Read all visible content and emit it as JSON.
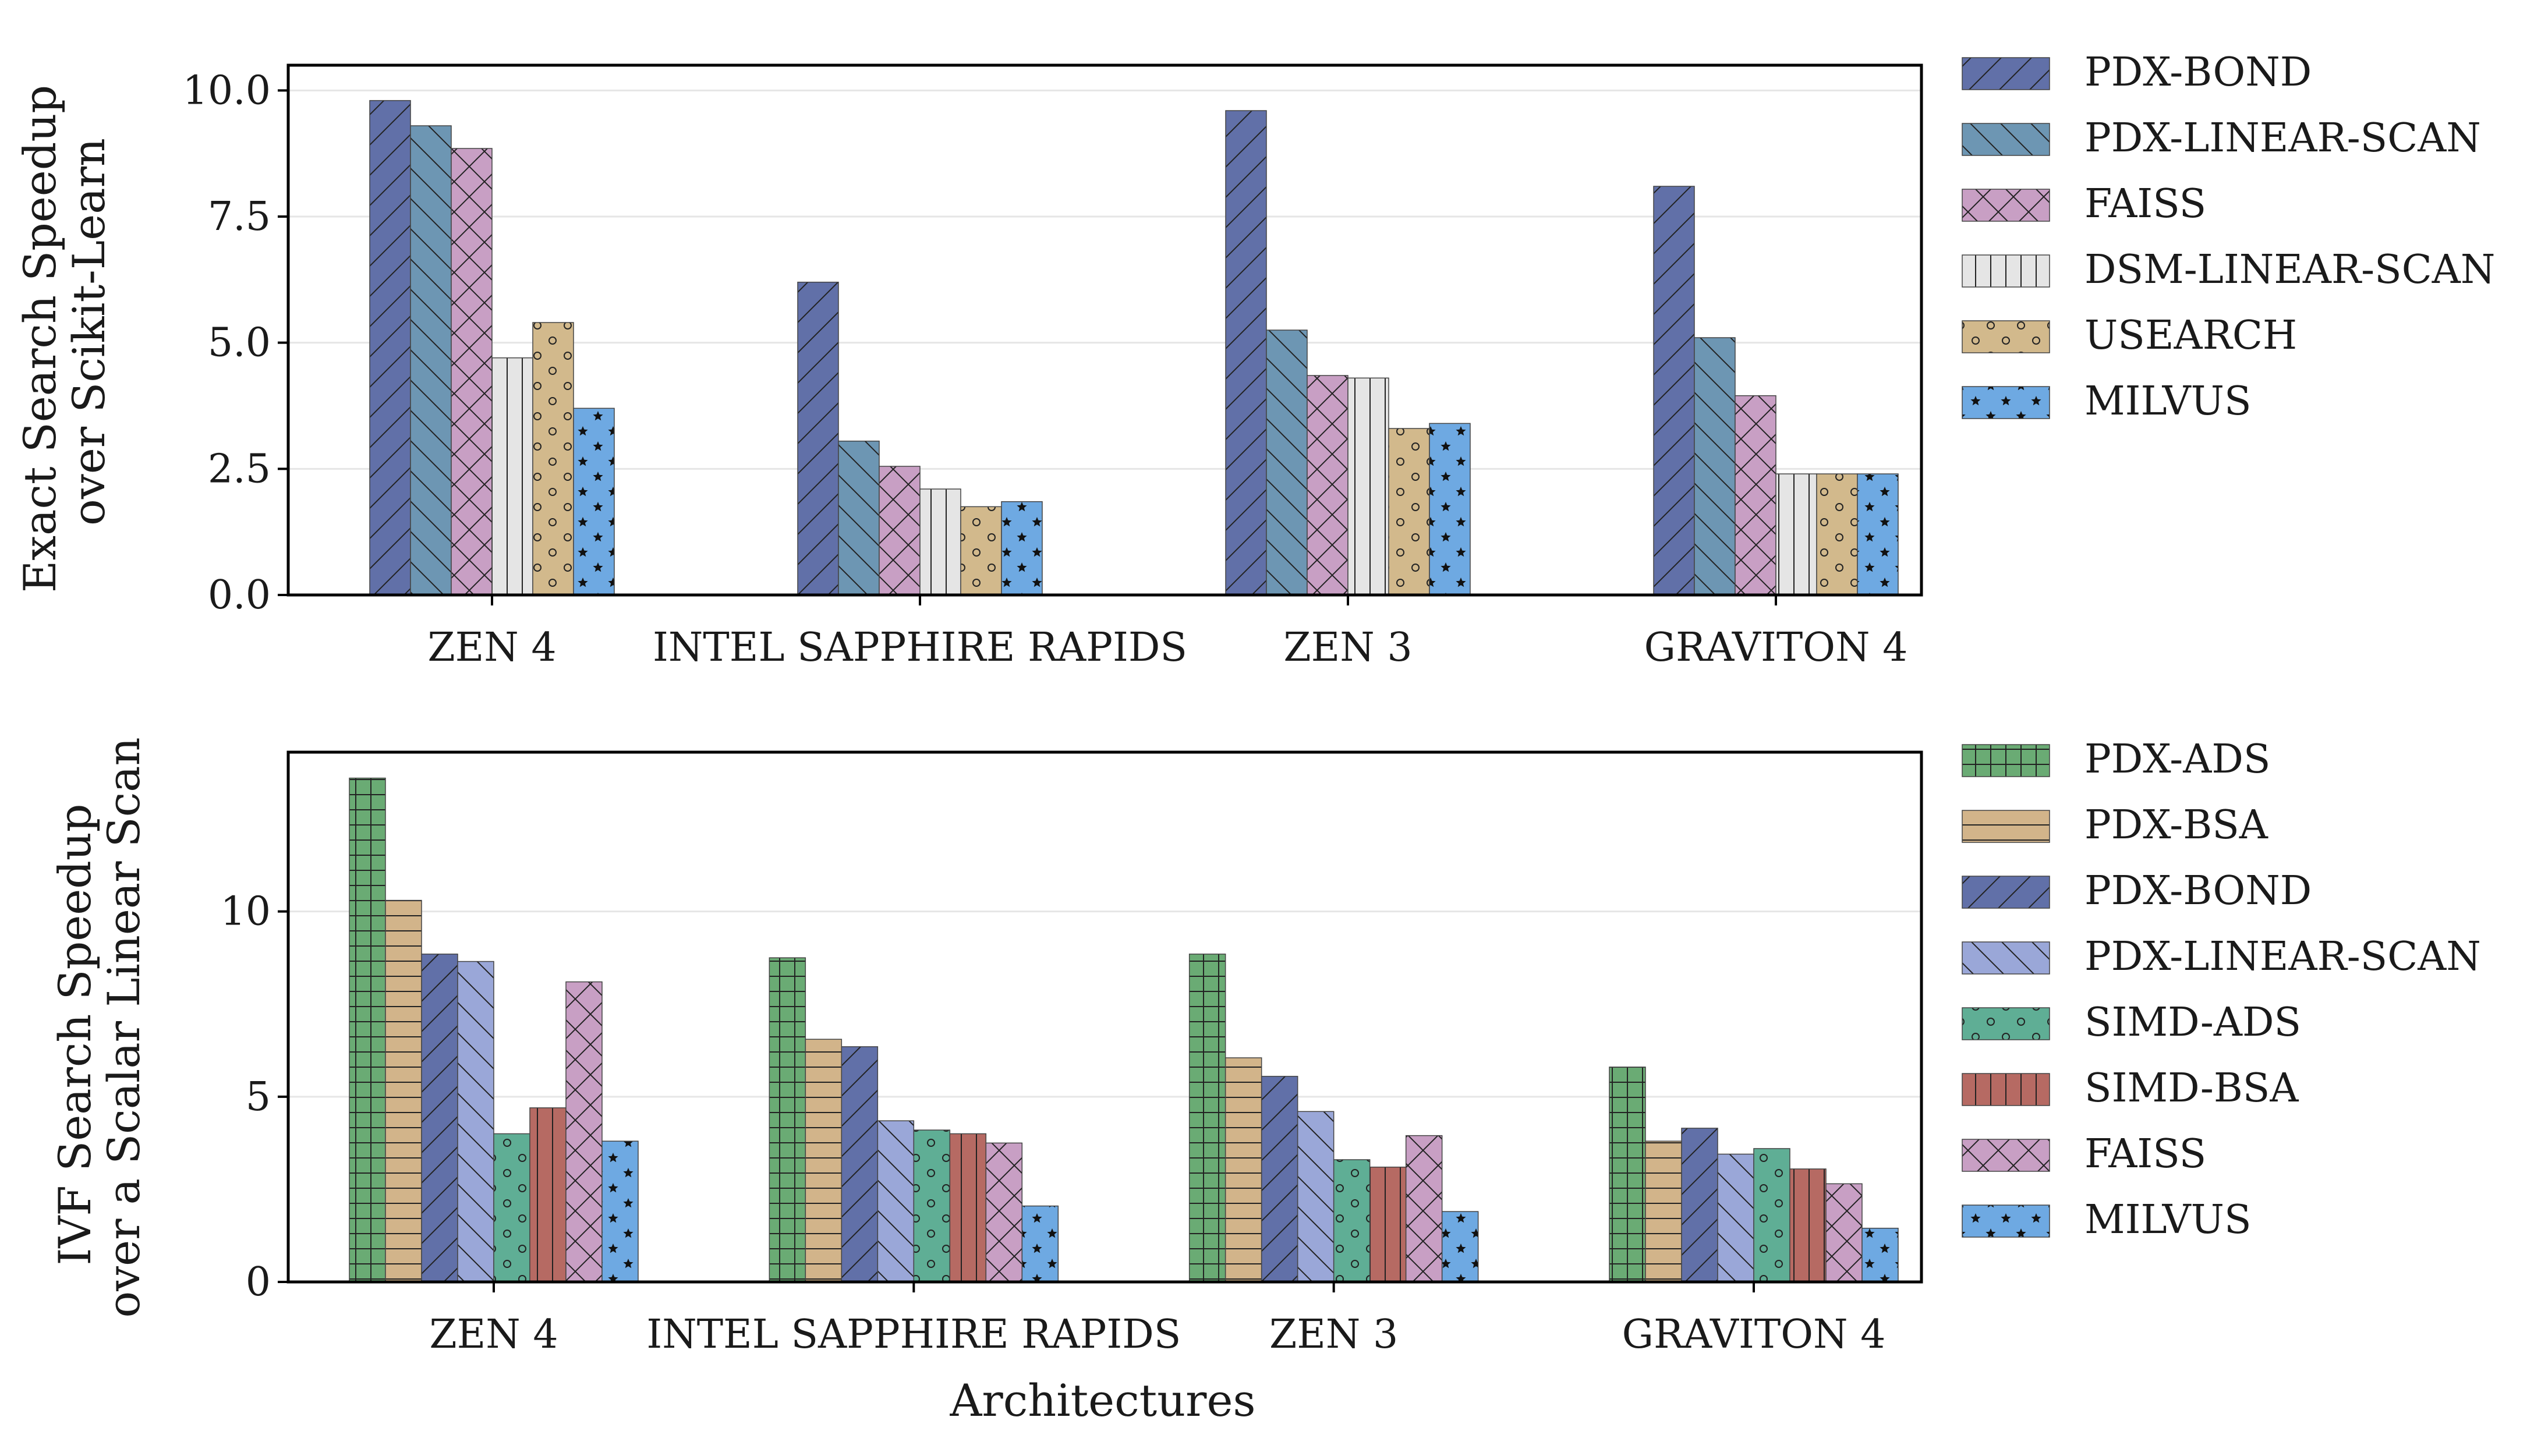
{
  "chart_data": [
    {
      "type": "bar",
      "ylabel_lines": [
        "Exact Search Speedup",
        "over Scikit-Learn"
      ],
      "xlabel": "",
      "categories": [
        "ZEN 4",
        "INTEL SAPPHIRE RAPIDS",
        "ZEN 3",
        "GRAVITON 4"
      ],
      "ylim": [
        0,
        10.5
      ],
      "yticks": [
        0.0,
        2.5,
        5.0,
        7.5,
        10.0
      ],
      "ytick_labels": [
        "0.0",
        "2.5",
        "5.0",
        "7.5",
        "10.0"
      ],
      "grid": "horizontal",
      "legend_position": "outside-right",
      "series": [
        {
          "name": "PDX-BOND",
          "color": "#6170a8",
          "hatch": "slash",
          "values": [
            9.8,
            6.2,
            9.6,
            8.1
          ]
        },
        {
          "name": "PDX-LINEAR-SCAN",
          "color": "#6d96b3",
          "hatch": "backslash",
          "values": [
            9.3,
            3.05,
            5.25,
            5.1
          ]
        },
        {
          "name": "FAISS",
          "color": "#c89fc4",
          "hatch": "cross",
          "values": [
            8.85,
            2.55,
            4.35,
            3.95
          ]
        },
        {
          "name": "DSM-LINEAR-SCAN",
          "color": "#e5e5e5",
          "hatch": "vertical",
          "values": [
            4.7,
            2.1,
            4.3,
            2.4
          ]
        },
        {
          "name": "USEARCH",
          "color": "#d2b98c",
          "hatch": "circles",
          "values": [
            5.4,
            1.75,
            3.3,
            2.4
          ]
        },
        {
          "name": "MILVUS",
          "color": "#6ea9e2",
          "hatch": "stars",
          "values": [
            3.7,
            1.85,
            3.4,
            2.4
          ]
        }
      ]
    },
    {
      "type": "bar",
      "ylabel_lines": [
        "IVF Search Speedup",
        "over a Scalar Linear Scan"
      ],
      "xlabel": "Architectures",
      "categories": [
        "ZEN 4",
        "INTEL SAPPHIRE RAPIDS",
        "ZEN 3",
        "GRAVITON 4"
      ],
      "ylim": [
        0,
        14.3
      ],
      "yticks": [
        0,
        5,
        10
      ],
      "ytick_labels": [
        "0",
        "5",
        "10"
      ],
      "grid": "horizontal",
      "legend_position": "outside-right",
      "series": [
        {
          "name": "PDX-ADS",
          "color": "#6aab74",
          "hatch": "grid",
          "values": [
            13.6,
            8.75,
            8.85,
            5.8
          ]
        },
        {
          "name": "PDX-BSA",
          "color": "#d2b48a",
          "hatch": "horizontal",
          "values": [
            10.3,
            6.55,
            6.05,
            3.8
          ]
        },
        {
          "name": "PDX-BOND",
          "color": "#6170a8",
          "hatch": "slash",
          "values": [
            8.85,
            6.35,
            5.55,
            4.15
          ]
        },
        {
          "name": "PDX-LINEAR-SCAN",
          "color": "#9aa7d8",
          "hatch": "backslash",
          "values": [
            8.65,
            4.35,
            4.6,
            3.45
          ]
        },
        {
          "name": "SIMD-ADS",
          "color": "#5fae95",
          "hatch": "circles",
          "values": [
            4.0,
            4.1,
            3.3,
            3.6
          ]
        },
        {
          "name": "SIMD-BSA",
          "color": "#b66a63",
          "hatch": "vertical",
          "values": [
            4.7,
            4.0,
            3.1,
            3.05
          ]
        },
        {
          "name": "FAISS",
          "color": "#c89fc4",
          "hatch": "cross",
          "values": [
            8.1,
            3.75,
            3.95,
            2.65
          ]
        },
        {
          "name": "MILVUS",
          "color": "#6ea9e2",
          "hatch": "stars",
          "values": [
            3.8,
            2.05,
            1.9,
            1.45
          ]
        }
      ]
    }
  ]
}
